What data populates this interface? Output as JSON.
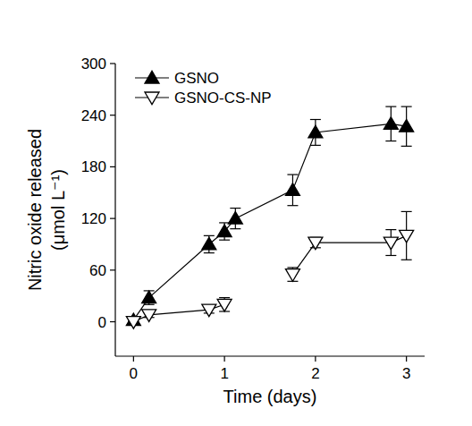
{
  "chart_data": {
    "type": "line",
    "xlabel": "Time (days)",
    "ylabel": "Nitric oxide released (μmol L⁻¹)",
    "x": [
      0,
      0.17,
      0.83,
      1.0,
      1.12,
      1.75,
      2.0,
      2.83,
      3.0
    ],
    "series": [
      {
        "name": "GSNO",
        "color": "#000000",
        "marker": "triangle-up",
        "line_style": "solid",
        "values": [
          2,
          28,
          90,
          105,
          120,
          153,
          220,
          230,
          227
        ],
        "errors": [
          2,
          8,
          10,
          10,
          12,
          18,
          15,
          20,
          23
        ]
      },
      {
        "name": "GSNO-CS-NP",
        "color": "#000000",
        "marker": "triangle-down-open",
        "line_style": "solid",
        "values": [
          0,
          8,
          14,
          20,
          null,
          55,
          92,
          92,
          100
        ],
        "errors": [
          2,
          3,
          4,
          8,
          null,
          8,
          6,
          15,
          28
        ]
      }
    ],
    "xlim": [
      -0.2,
      3.2
    ],
    "xticks": [
      0,
      1,
      2,
      3
    ],
    "ylim": [
      -40,
      300
    ],
    "yticks": [
      0,
      60,
      120,
      180,
      240,
      300
    ],
    "grid": false,
    "legend": "upper left"
  }
}
